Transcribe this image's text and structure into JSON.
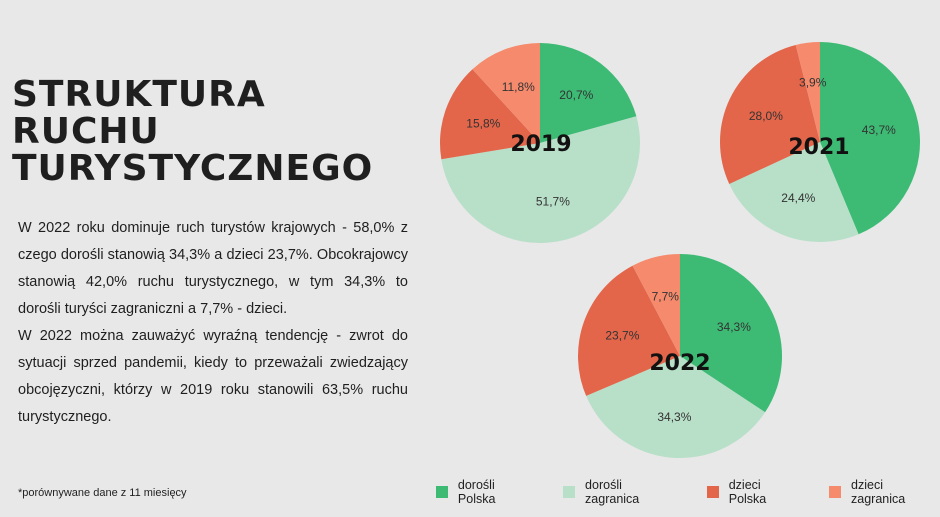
{
  "heading": {
    "line1": "STRUKTURA",
    "line2": "RUCHU",
    "line3": "TURYSTYCZNEGO"
  },
  "body": {
    "paragraph1": "W 2022 roku dominuje ruch turystów krajowych - 58,0% z czego dorośli stanowią 34,3% a dzieci 23,7%. Obcokrajowcy stanowią 42,0% ruchu turystycznego, w tym 34,3% to dorośli turyści zagraniczni a 7,7% - dzieci.",
    "paragraph2": "W 2022 można zauważyć wyraźną tendencję - zwrot do sytuacji sprzed pandemii, kiedy to przeważali zwiedzający obcojęzyczni, którzy w 2019 roku stanowili 63,5% ruchu turystycznego."
  },
  "footnote": "*porównywane dane z 11 miesięcy",
  "colors": {
    "dorosli_polska": "#3dbb74",
    "dorosli_zagranica": "#b8dfc8",
    "dzieci_polska": "#e3654a",
    "dzieci_zagranica": "#f58a6c"
  },
  "legend": [
    {
      "label": "dorośli Polska",
      "color": "#3dbb74"
    },
    {
      "label": "dorośli zagranica",
      "color": "#b8dfc8"
    },
    {
      "label": "dzieci Polska",
      "color": "#e3654a"
    },
    {
      "label": "dzieci zagranica",
      "color": "#f58a6c"
    }
  ],
  "chart_data": [
    {
      "type": "pie",
      "title": "2019",
      "categories": [
        "dorośli Polska",
        "dorośli zagranica",
        "dzieci Polska",
        "dzieci zagranica"
      ],
      "values": [
        20.7,
        51.7,
        15.8,
        11.8
      ],
      "labels": [
        "20,7%",
        "51,7%",
        "15,8%",
        "11,8%"
      ]
    },
    {
      "type": "pie",
      "title": "2021",
      "categories": [
        "dorośli Polska",
        "dorośli zagranica",
        "dzieci Polska",
        "dzieci zagranica"
      ],
      "values": [
        43.7,
        24.4,
        28.0,
        3.9
      ],
      "labels": [
        "43,7%",
        "24,4%",
        "28,0%",
        "3,9%"
      ]
    },
    {
      "type": "pie",
      "title": "2022",
      "categories": [
        "dorośli Polska",
        "dorośli zagranica",
        "dzieci Polska",
        "dzieci zagranica"
      ],
      "values": [
        34.3,
        34.3,
        23.7,
        7.7
      ],
      "labels": [
        "34,3%",
        "34,3%",
        "23,7%",
        "7,7%"
      ]
    }
  ]
}
